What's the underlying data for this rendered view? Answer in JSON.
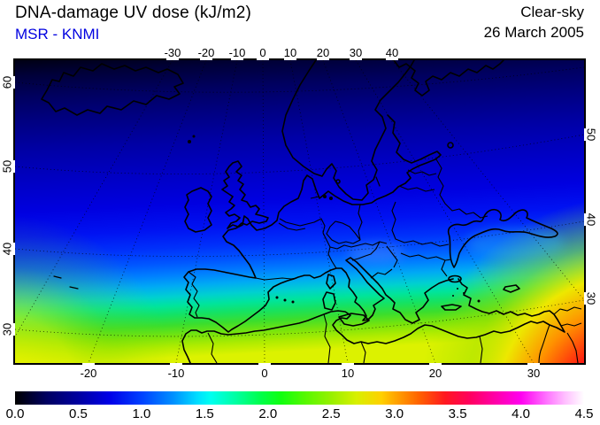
{
  "header": {
    "title": "DNA-damage UV dose (kJ/m2)",
    "source": "MSR - KNMI",
    "source_color": "#0000E0",
    "condition": "Clear-sky",
    "date": "26 March 2005"
  },
  "map": {
    "axes": {
      "top_lon_labels": [
        "-30",
        "-20",
        "-10",
        "0",
        "10",
        "20",
        "30",
        "40"
      ],
      "bottom_lon_labels": [
        "-20",
        "-10",
        "0",
        "10",
        "20",
        "30"
      ],
      "left_lat_labels": [
        "60",
        "50",
        "40",
        "30"
      ],
      "right_lat_labels": [
        "50",
        "40",
        "30"
      ]
    },
    "region": "Europe and North Africa",
    "uv_field_colors": {
      "low_north": "#000038",
      "mid": "#0000E0",
      "cyan_band": "#00D0D0",
      "green_band": "#3CDE2C",
      "high_southwest": "#DCF200",
      "hot_corner_southeast": "#FF00D0"
    }
  },
  "colorbar": {
    "min": 0.0,
    "max": 4.5,
    "unit": "kJ/m2",
    "tick_labels": [
      "0.0",
      "0.5",
      "1.0",
      "1.5",
      "2.0",
      "2.5",
      "3.0",
      "3.5",
      "4.0",
      "4.5"
    ],
    "tick_values": [
      0.0,
      0.5,
      1.0,
      1.5,
      2.0,
      2.5,
      3.0,
      3.5,
      4.0,
      4.5
    ],
    "gradient_stops": [
      {
        "at": 0.0,
        "color": "#000000"
      },
      {
        "at": 0.055,
        "color": "#000060"
      },
      {
        "at": 0.111,
        "color": "#0000A0"
      },
      {
        "at": 0.167,
        "color": "#0000E8"
      },
      {
        "at": 0.222,
        "color": "#0040FF"
      },
      {
        "at": 0.278,
        "color": "#0090FF"
      },
      {
        "at": 0.322,
        "color": "#00E0FF"
      },
      {
        "at": 0.344,
        "color": "#00FFF0"
      },
      {
        "at": 0.389,
        "color": "#00FFA0"
      },
      {
        "at": 0.433,
        "color": "#00FF48"
      },
      {
        "at": 0.467,
        "color": "#10FF10"
      },
      {
        "at": 0.511,
        "color": "#58F800"
      },
      {
        "at": 0.556,
        "color": "#98F000"
      },
      {
        "at": 0.6,
        "color": "#D8F000"
      },
      {
        "at": 0.644,
        "color": "#FFD000"
      },
      {
        "at": 0.667,
        "color": "#FFA800"
      },
      {
        "at": 0.711,
        "color": "#FF6000"
      },
      {
        "at": 0.756,
        "color": "#FF1820"
      },
      {
        "at": 0.8,
        "color": "#FF0060"
      },
      {
        "at": 0.844,
        "color": "#FF00A8"
      },
      {
        "at": 0.889,
        "color": "#FF00F0"
      },
      {
        "at": 0.933,
        "color": "#FF70FF"
      },
      {
        "at": 0.967,
        "color": "#FFC0FF"
      },
      {
        "at": 1.0,
        "color": "#FFFFFF"
      }
    ]
  }
}
